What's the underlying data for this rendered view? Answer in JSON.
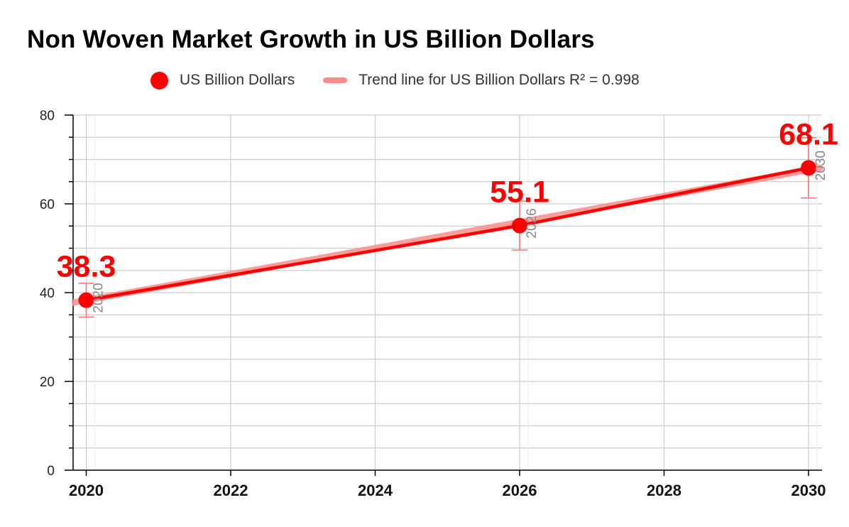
{
  "chart_data": {
    "type": "scatter",
    "title": "Non Woven Market Growth in US Billion Dollars",
    "xlabel": "",
    "ylabel": "",
    "xlim": [
      2020,
      2030
    ],
    "ylim": [
      0,
      80
    ],
    "x_ticks": [
      "2020",
      "2022",
      "2024",
      "2026",
      "2028",
      "2030"
    ],
    "y_ticks": [
      "0",
      "20",
      "40",
      "60",
      "80"
    ],
    "grid": true,
    "legend": "top",
    "series": [
      {
        "name": "US Billion Dollars",
        "color": "#ff0000",
        "x": [
          2020,
          2026,
          2030
        ],
        "x_labels": [
          "2020",
          "2026",
          "2030"
        ],
        "values": [
          38.3,
          55.1,
          68.1
        ],
        "value_labels": [
          "38.3",
          "55.1",
          "68.1"
        ],
        "error_low": [
          34.5,
          49.6,
          61.3
        ],
        "error_high": [
          42.1,
          60.6,
          74.9
        ]
      }
    ],
    "trendline": {
      "label": "Trend line for US Billion Dollars R² = 0.998",
      "color": "#ff8c8c",
      "x": [
        2020,
        2030
      ],
      "y": [
        37.9,
        68.0
      ]
    },
    "connect_line": {
      "color": "#ff0000"
    }
  }
}
